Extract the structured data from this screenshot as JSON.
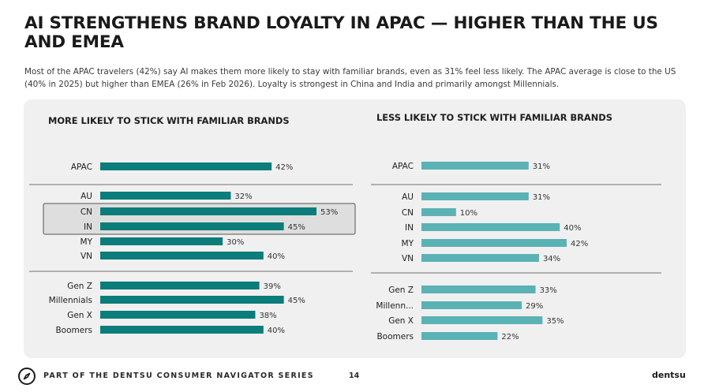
{
  "page": {
    "title": "AI STRENGTHENS BRAND LOYALTY IN APAC — HIGHER THAN THE US AND EMEA",
    "subtitle": "Most of the APAC travelers (42%) say AI makes them more likely to stay with familiar brands, even as 31% feel less likely. The APAC average is close to the US (40% in 2025) but higher than EMEA (26% in Feb 2026). Loyalty is strongest in China and India and primarily amongst Millennials."
  },
  "footer": {
    "logo_icon": "compass-icon",
    "series": "PART OF THE DENTSU CONSUMER NAVIGATOR SERIES",
    "page_number": "14",
    "brand": "dentsu"
  },
  "colors": {
    "more_likely_bar": "#0b7d7b",
    "less_likely_bar": "#5bb2b5",
    "panel_bg": "#f0f0f0",
    "highlight_box": "#dedede"
  },
  "chart_data": [
    {
      "type": "bar",
      "orientation": "horizontal",
      "title": "MORE LIKELY TO STICK WITH FAMILIAR BRANDS",
      "value_suffix": "%",
      "xlim": [
        0,
        55
      ],
      "groups": [
        {
          "categories": [
            "APAC"
          ],
          "values": [
            42
          ]
        },
        {
          "categories": [
            "AU",
            "CN",
            "IN",
            "MY",
            "VN"
          ],
          "values": [
            32,
            53,
            45,
            30,
            40
          ]
        },
        {
          "categories": [
            "Gen Z",
            "Millennials",
            "Gen X",
            "Boomers"
          ],
          "values": [
            39,
            45,
            38,
            40
          ]
        }
      ],
      "highlighted": [
        "CN",
        "IN"
      ]
    },
    {
      "type": "bar",
      "orientation": "horizontal",
      "title": "LESS LIKELY TO STICK WITH FAMILIAR BRANDS",
      "value_suffix": "%",
      "xlim": [
        0,
        55
      ],
      "groups": [
        {
          "categories": [
            "APAC"
          ],
          "values": [
            31
          ]
        },
        {
          "categories": [
            "AU",
            "CN",
            "IN",
            "MY",
            "VN"
          ],
          "values": [
            31,
            10,
            40,
            42,
            34
          ]
        },
        {
          "categories": [
            "Gen Z",
            "Millenn...",
            "Gen X",
            "Boomers"
          ],
          "values": [
            33,
            29,
            35,
            22
          ]
        }
      ],
      "highlighted": []
    }
  ]
}
